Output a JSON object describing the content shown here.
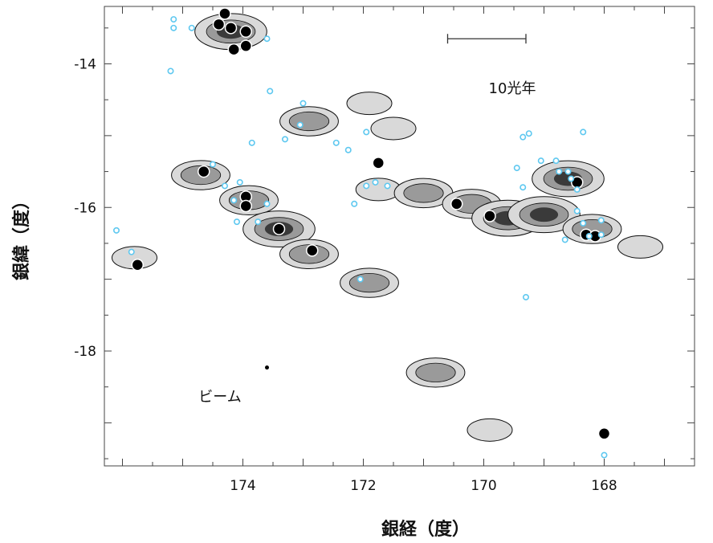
{
  "chart_data": {
    "type": "scatter",
    "xlabel": "銀経（度）",
    "ylabel": "銀緯（度）",
    "xlim": [
      176.3,
      166.5
    ],
    "ylim": [
      -19.6,
      -13.2
    ],
    "x_ticks": [
      174,
      172,
      170,
      168
    ],
    "y_ticks": [
      -14,
      -16,
      -18
    ],
    "annotations": {
      "scale_bar_label": "10光年",
      "beam_label": "ビーム"
    },
    "colors": {
      "cloud_light": "#d9d9d9",
      "cloud_mid": "#9a9a9a",
      "cloud_dark": "#3a3a3a",
      "contour": "#111111",
      "open_circle": "#5ec8f0",
      "filled_circle": "#000000"
    },
    "clouds": [
      {
        "x": 174.2,
        "y": -13.55,
        "level": 3
      },
      {
        "x": 172.9,
        "y": -14.8,
        "level": 2
      },
      {
        "x": 171.9,
        "y": -14.55,
        "level": 1
      },
      {
        "x": 174.7,
        "y": -15.55,
        "level": 2
      },
      {
        "x": 173.9,
        "y": -15.9,
        "level": 2
      },
      {
        "x": 173.4,
        "y": -16.3,
        "level": 3
      },
      {
        "x": 172.9,
        "y": -16.65,
        "level": 2
      },
      {
        "x": 175.8,
        "y": -16.7,
        "level": 1
      },
      {
        "x": 171.9,
        "y": -17.05,
        "level": 2
      },
      {
        "x": 171.75,
        "y": -15.75,
        "level": 1
      },
      {
        "x": 171.0,
        "y": -15.8,
        "level": 2
      },
      {
        "x": 170.2,
        "y": -15.95,
        "level": 2
      },
      {
        "x": 169.6,
        "y": -16.15,
        "level": 3
      },
      {
        "x": 169.0,
        "y": -16.1,
        "level": 3
      },
      {
        "x": 168.6,
        "y": -15.6,
        "level": 3
      },
      {
        "x": 168.2,
        "y": -16.3,
        "level": 2
      },
      {
        "x": 167.4,
        "y": -16.55,
        "level": 1
      },
      {
        "x": 170.8,
        "y": -18.3,
        "level": 2
      },
      {
        "x": 169.9,
        "y": -19.1,
        "level": 1
      },
      {
        "x": 171.5,
        "y": -14.9,
        "level": 1
      }
    ],
    "series": [
      {
        "marker": "filled",
        "points": [
          [
            174.3,
            -13.3
          ],
          [
            174.4,
            -13.45
          ],
          [
            174.2,
            -13.5
          ],
          [
            173.95,
            -13.55
          ],
          [
            174.15,
            -13.8
          ],
          [
            173.95,
            -13.75
          ],
          [
            174.65,
            -15.5
          ],
          [
            173.95,
            -15.85
          ],
          [
            173.95,
            -15.98
          ],
          [
            173.4,
            -16.3
          ],
          [
            172.85,
            -16.6
          ],
          [
            175.75,
            -16.8
          ],
          [
            171.75,
            -15.38
          ],
          [
            170.45,
            -15.95
          ],
          [
            169.9,
            -16.12
          ],
          [
            168.45,
            -15.65
          ],
          [
            168.3,
            -16.38
          ],
          [
            168.15,
            -16.4
          ],
          [
            168.0,
            -19.15
          ]
        ]
      },
      {
        "marker": "open",
        "points": [
          [
            175.15,
            -13.38
          ],
          [
            175.15,
            -13.5
          ],
          [
            174.85,
            -13.5
          ],
          [
            173.6,
            -13.65
          ],
          [
            175.2,
            -14.1
          ],
          [
            173.55,
            -14.38
          ],
          [
            173.0,
            -14.55
          ],
          [
            173.05,
            -14.85
          ],
          [
            173.85,
            -15.1
          ],
          [
            173.3,
            -15.05
          ],
          [
            172.45,
            -15.1
          ],
          [
            172.25,
            -15.2
          ],
          [
            171.95,
            -14.95
          ],
          [
            171.95,
            -15.7
          ],
          [
            171.8,
            -15.65
          ],
          [
            171.6,
            -15.7
          ],
          [
            174.5,
            -15.4
          ],
          [
            174.3,
            -15.7
          ],
          [
            174.05,
            -15.65
          ],
          [
            174.15,
            -15.9
          ],
          [
            173.6,
            -15.95
          ],
          [
            174.1,
            -16.2
          ],
          [
            173.75,
            -16.2
          ],
          [
            172.15,
            -15.95
          ],
          [
            172.05,
            -17.0
          ],
          [
            169.45,
            -15.45
          ],
          [
            169.35,
            -15.02
          ],
          [
            169.25,
            -14.97
          ],
          [
            169.05,
            -15.35
          ],
          [
            168.8,
            -15.35
          ],
          [
            168.75,
            -15.5
          ],
          [
            168.6,
            -15.5
          ],
          [
            168.55,
            -15.6
          ],
          [
            168.45,
            -15.75
          ],
          [
            168.35,
            -14.95
          ],
          [
            168.45,
            -16.05
          ],
          [
            168.35,
            -16.22
          ],
          [
            168.05,
            -16.18
          ],
          [
            168.65,
            -16.45
          ],
          [
            168.25,
            -16.4
          ],
          [
            168.05,
            -16.38
          ],
          [
            169.3,
            -17.25
          ],
          [
            176.1,
            -16.32
          ],
          [
            175.85,
            -16.62
          ],
          [
            168.0,
            -19.45
          ],
          [
            169.35,
            -15.72
          ]
        ]
      }
    ]
  }
}
